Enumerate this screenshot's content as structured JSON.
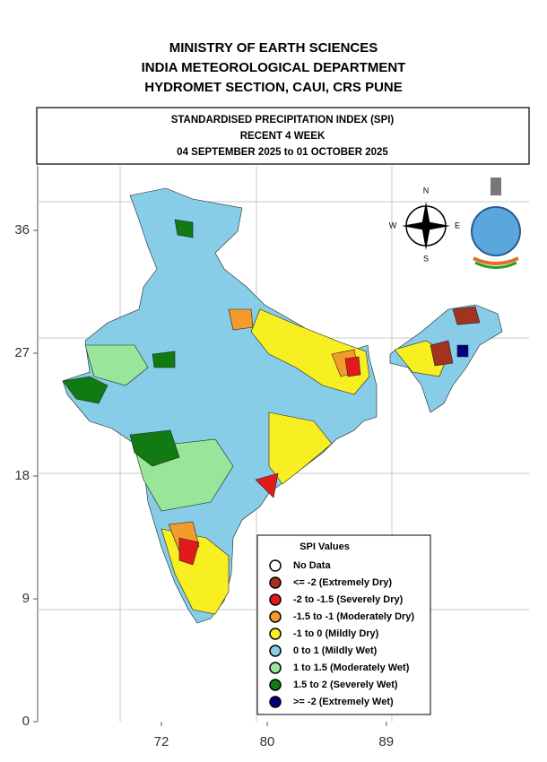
{
  "header": {
    "lines": [
      "MINISTRY OF EARTH SCIENCES",
      "INDIA METEOROLOGICAL DEPARTMENT",
      "HYDROMET SECTION, CAUI, CRS PUNE"
    ]
  },
  "title_box": {
    "lines": [
      "STANDARDISED PRECIPITATION INDEX (SPI)",
      "RECENT 4 WEEK",
      "04 SEPTEMBER 2025 to 01 OCTOBER 2025"
    ]
  },
  "axes": {
    "yticks": [
      0,
      9,
      18,
      27,
      36
    ],
    "xticks": [
      72,
      80,
      89
    ]
  },
  "compass": {
    "north": "N",
    "east": "E",
    "south": "S",
    "west": "W"
  },
  "legend": {
    "title": "SPI Values",
    "items": [
      {
        "label": "No Data",
        "color": "#ffffff"
      },
      {
        "label": "<= -2 (Extremely Dry)",
        "color": "#a3321f"
      },
      {
        "label": "-2 to -1.5 (Severely Dry)",
        "color": "#e31a1c"
      },
      {
        "label": "-1.5 to -1 (Moderately Dry)",
        "color": "#f39c2b"
      },
      {
        "label": "-1 to 0 (Mildly  Dry)",
        "color": "#f7ef22"
      },
      {
        "label": "0 to 1 (Mildly  Wet)",
        "color": "#87cde8"
      },
      {
        "label": "1 to 1.5 (Moderately Wet)",
        "color": "#98e69a"
      },
      {
        "label": "1.5 to 2 (Severely Wet)",
        "color": "#127a12"
      },
      {
        "label": ">= -2 (Extremely Wet)",
        "color": "#00007f"
      }
    ]
  }
}
